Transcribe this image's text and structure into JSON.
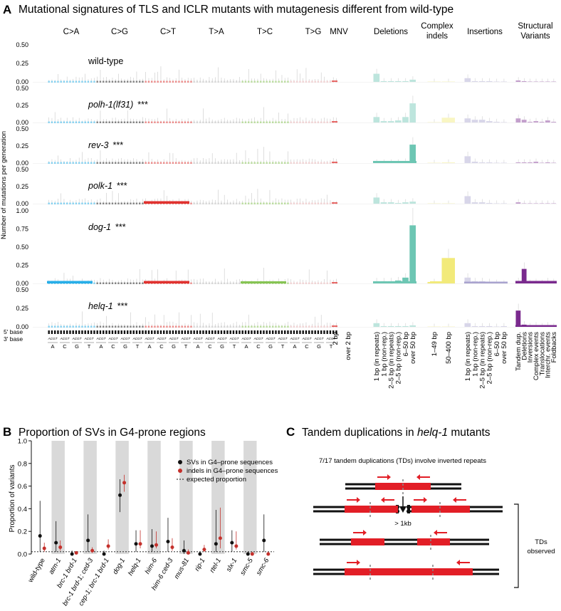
{
  "panel_a": {
    "letter": "A",
    "title": "Mutational signatures of TLS and ICLR mutants with mutagenesis different from wild-type",
    "y_axis_label": "Number of mutations per generation",
    "groups": [
      {
        "label": "C>A",
        "color": "#27aee8"
      },
      {
        "label": "C>G",
        "color": "#222222"
      },
      {
        "label": "C>T",
        "color": "#e0322f"
      },
      {
        "label": "T>A",
        "color": "#b9b9b9"
      },
      {
        "label": "T>C",
        "color": "#86c453"
      },
      {
        "label": "T>G",
        "color": "#e9b3b5"
      },
      {
        "label": "MNV",
        "color": "#e0322f"
      },
      {
        "label": "Deletions",
        "color": "#6dc6b3"
      },
      {
        "label": "Complex indels",
        "color": "#f2ea7a"
      },
      {
        "label": "Insertions",
        "color": "#a9a3cf"
      },
      {
        "label": "Structural Variants",
        "color": "#7a2a8e"
      }
    ],
    "tracks": [
      {
        "name": "wild-type",
        "stars": "",
        "ticks": [
          "0.50",
          "0.25",
          "0.00"
        ],
        "main": "none"
      },
      {
        "name": "polh-1(lf31)",
        "stars": "***",
        "ticks": [
          "0.50",
          "0.25",
          "0.00"
        ],
        "main": "none"
      },
      {
        "name": "rev-3",
        "stars": "***",
        "ticks": [
          "0.50",
          "0.25",
          "0.00"
        ],
        "main": "del"
      },
      {
        "name": "polk-1",
        "stars": "***",
        "ticks": [
          "0.50",
          "0.25",
          "0.00"
        ],
        "main": "ct"
      },
      {
        "name": "dog-1",
        "stars": "***",
        "ticks": [
          "1.00",
          "0.75",
          "0.50",
          "0.25",
          "0.00"
        ],
        "main": "dog"
      },
      {
        "name": "helq-1",
        "stars": "***",
        "ticks": [
          "0.50",
          "0.25",
          "0.00"
        ],
        "main": "td"
      }
    ],
    "base_labels": {
      "five_prime": "5' base",
      "three_prime": "3' base",
      "bases": [
        "A",
        "C",
        "G",
        "T"
      ],
      "mini": "ACGT"
    },
    "indel_labels": {
      "mnv": [
        "2 bp",
        "over 2 bp"
      ],
      "deletions": [
        "1 bp (in repeats)",
        "1 bp (non-rep.)",
        "2–5 bp (in repeats)",
        "2–5 bp (non-rep.)",
        "6–50 bp",
        "over 50 bp"
      ],
      "complex": [
        "1–49 bp",
        "50–400 bp"
      ],
      "insertions": [
        "1 bp (in repeats)",
        "1 bp (non-rep.)",
        "2–5 bp (in repeats)",
        "2–5 bp (non-rep.)",
        "6–50 bp",
        "over 50 bp"
      ],
      "svs": [
        "Tandem dup.",
        "Deletions",
        "Inversions",
        "Complex events",
        "Translocations",
        "Interchr. events",
        "Foldbacks"
      ]
    },
    "series_values": {
      "wild-type": {
        "del": [
          0.11,
          0.01,
          0.01,
          0.01,
          0.01,
          0.03
        ],
        "ins": [
          0.05,
          0.01,
          0.01,
          0.01,
          0.0,
          0.0
        ],
        "sv": [
          0.02,
          0.01,
          0.0,
          0.0,
          0.0,
          0.0,
          0.0
        ],
        "complex": [
          0.0,
          0.0
        ]
      },
      "polh-1(lf31)": {
        "del": [
          0.08,
          0.02,
          0.02,
          0.03,
          0.08,
          0.28
        ],
        "ins": [
          0.06,
          0.04,
          0.04,
          0.02,
          0.01,
          0.0
        ],
        "sv": [
          0.06,
          0.04,
          0.01,
          0.02,
          0.01,
          0.03,
          0.01
        ],
        "complex": [
          0.0,
          0.07
        ]
      },
      "rev-3": {
        "del": [
          0.01,
          0.01,
          0.01,
          0.01,
          0.02,
          0.27
        ],
        "ins": [
          0.1,
          0.02,
          0.01,
          0.01,
          0.0,
          0.0
        ],
        "sv": [
          0.01,
          0.01,
          0.01,
          0.02,
          0.0,
          0.01,
          0.0
        ],
        "complex": [
          0.0,
          0.01
        ]
      },
      "polk-1": {
        "del": [
          0.09,
          0.02,
          0.02,
          0.01,
          0.02,
          0.03
        ],
        "ins": [
          0.11,
          0.02,
          0.02,
          0.01,
          0.0,
          0.0
        ],
        "sv": [
          0.02,
          0.0,
          0.0,
          0.0,
          0.0,
          0.0,
          0.0
        ],
        "complex": [
          0.0,
          0.0
        ]
      },
      "dog-1": {
        "del": [
          0.03,
          0.03,
          0.03,
          0.04,
          0.08,
          0.8
        ],
        "ins": [
          0.08,
          0.03,
          0.03,
          0.02,
          0.01,
          0.0
        ],
        "sv": [
          0.03,
          0.2,
          0.01,
          0.02,
          0.01,
          0.03,
          0.02
        ],
        "complex": [
          0.02,
          0.35
        ]
      },
      "helq-1": {
        "del": [
          0.05,
          0.01,
          0.01,
          0.01,
          0.01,
          0.02
        ],
        "ins": [
          0.05,
          0.01,
          0.01,
          0.01,
          0.0,
          0.01
        ],
        "sv": [
          0.22,
          0.03,
          0.01,
          0.02,
          0.01,
          0.02,
          0.01
        ],
        "complex": [
          0.0,
          0.0
        ]
      }
    }
  },
  "panel_b": {
    "letter": "B",
    "title": "Proportion of SVs in G4-prone regions",
    "y_label": "Proportion of variants",
    "y_ticks": [
      "0.0",
      "0.2",
      "0.4",
      "0.6",
      "0.8",
      "1.0"
    ],
    "legend": [
      "SVs in G4–prone sequences",
      "indels in G4–prone sequences",
      "expected proportion"
    ],
    "colors": {
      "svs": "#111111",
      "indels": "#c4302b",
      "band": "#d9d9d9"
    },
    "chart_data": {
      "type": "scatter",
      "title": "Proportion of SVs in G4-prone regions",
      "ylabel": "Proportion of variants",
      "ylim": [
        0,
        1
      ],
      "expected_proportion": 0.02,
      "categories": [
        "wild-type",
        "atm-1",
        "brc-1 brd-1",
        "brc-1 brd-1; ced-3",
        "cep-1; brc-1 brd-1",
        "dog-1",
        "helq-1",
        "him-6",
        "him-6 ced-3",
        "mus-81",
        "rip-1",
        "rtel-1",
        "slx-1",
        "smc-5",
        "smc-6"
      ],
      "series": [
        {
          "name": "SVs in G4–prone sequences",
          "values": [
            0.16,
            0.1,
            0.0,
            0.12,
            0.0,
            0.52,
            0.09,
            0.07,
            0.11,
            0.03,
            0.0,
            0.09,
            0.1,
            0.0,
            0.12
          ],
          "ci_low": [
            0.02,
            0.02,
            0.0,
            0.02,
            0.0,
            0.37,
            0.02,
            0.02,
            0.02,
            0.0,
            0.0,
            0.02,
            0.02,
            0.0,
            0.02
          ],
          "ci_high": [
            0.47,
            0.29,
            0.03,
            0.35,
            0.03,
            0.66,
            0.21,
            0.22,
            0.32,
            0.12,
            0.02,
            0.39,
            0.21,
            0.02,
            0.35
          ]
        },
        {
          "name": "indels in G4–prone sequences",
          "values": [
            0.05,
            0.06,
            0.01,
            0.03,
            0.07,
            0.63,
            0.09,
            0.08,
            0.06,
            0.01,
            0.04,
            0.14,
            0.07,
            0.0,
            0.0
          ],
          "ci_low": [
            0.02,
            0.03,
            0.0,
            0.01,
            0.04,
            0.55,
            0.05,
            0.05,
            0.03,
            0.0,
            0.02,
            0.05,
            0.04,
            0.0,
            0.0
          ],
          "ci_high": [
            0.1,
            0.12,
            0.02,
            0.06,
            0.13,
            0.7,
            0.21,
            0.2,
            0.14,
            0.04,
            0.08,
            0.41,
            0.2,
            0.02,
            0.02
          ]
        }
      ]
    }
  },
  "panel_c": {
    "letter": "C",
    "title_pre": "Tandem duplications in ",
    "title_gene": "helq-1",
    "title_post": " mutants",
    "caption": "7/17 tandem duplications (TDs) involve inverted repeats",
    "gap_label": "> 1kb",
    "bracket_label": [
      "TDs",
      "observed"
    ]
  }
}
